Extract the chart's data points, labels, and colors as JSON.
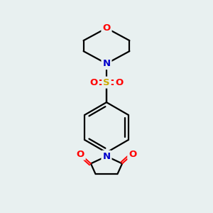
{
  "background_color": "#e8f0f0",
  "atom_colors": {
    "C": "#000000",
    "N": "#0000cc",
    "O": "#ff0000",
    "S": "#ccaa00"
  },
  "bond_color": "#000000",
  "figsize": [
    3.0,
    3.0
  ],
  "dpi": 100
}
